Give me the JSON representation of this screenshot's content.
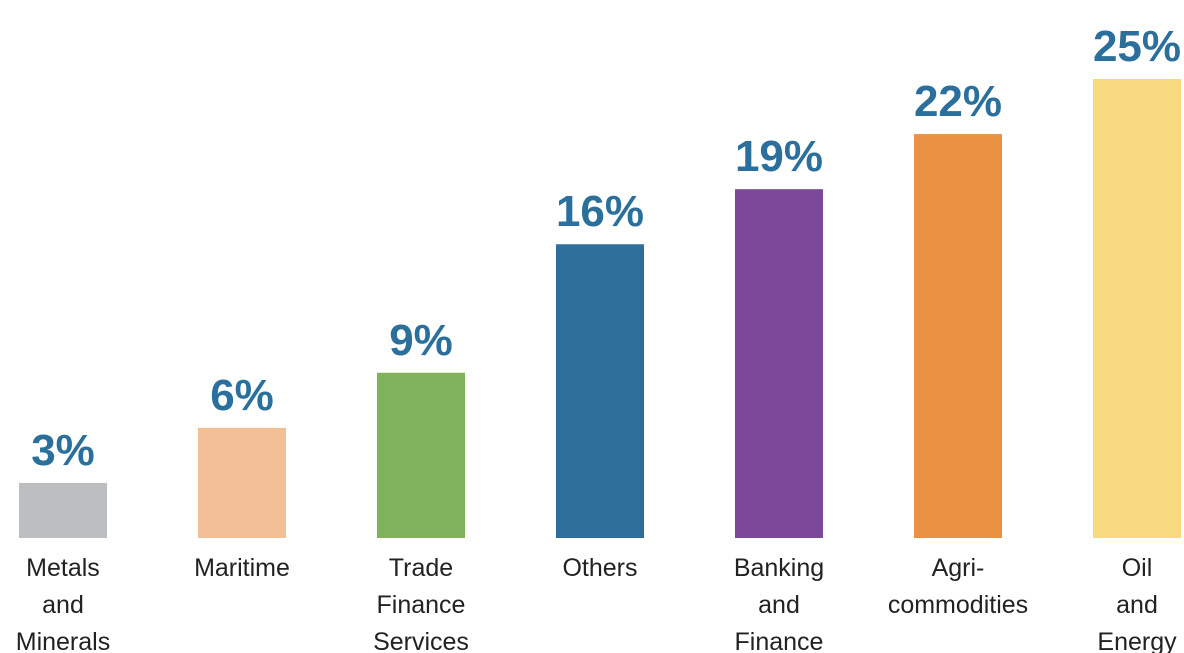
{
  "chart_data": {
    "type": "bar",
    "categories": [
      "Metals and Minerals",
      "Maritime",
      "Trade Finance Services",
      "Others",
      "Banking and Finance",
      "Agri-commodities",
      "Oil and Energy"
    ],
    "category_lines": [
      [
        "Metals",
        "and",
        "Minerals"
      ],
      [
        "Maritime"
      ],
      [
        "Trade",
        "Finance",
        "Services"
      ],
      [
        "Others"
      ],
      [
        "Banking",
        "and",
        "Finance"
      ],
      [
        "Agri-",
        "commodities"
      ],
      [
        "Oil",
        "and",
        "Energy"
      ]
    ],
    "values": [
      3,
      6,
      9,
      16,
      19,
      22,
      25
    ],
    "value_labels": [
      "3%",
      "6%",
      "9%",
      "16%",
      "19%",
      "22%",
      "25%"
    ],
    "bar_colors": [
      "#bdbec0",
      "#f2bf97",
      "#80b25b",
      "#2d6f9a",
      "#7c4898",
      "#eb9144",
      "#f7d97f"
    ],
    "value_label_color": "#2b6f9c",
    "ylim": [
      0,
      25
    ],
    "title": "",
    "xlabel": "",
    "ylabel": "",
    "grid": false,
    "legend": "none",
    "axes_visible": false
  }
}
